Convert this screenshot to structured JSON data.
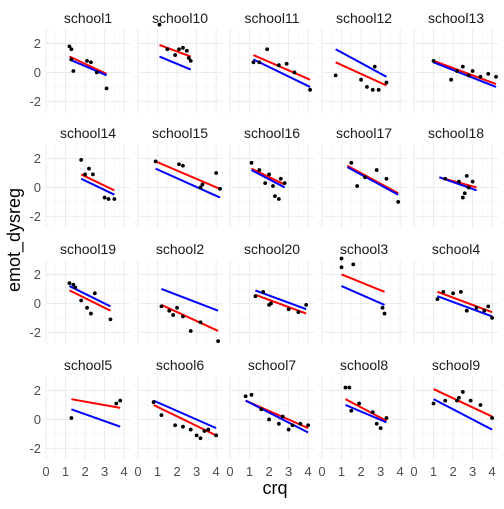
{
  "chart_data": {
    "type": "scatter",
    "layout": "facet_wrap",
    "ncol": 5,
    "xlabel": "crq",
    "ylabel": "emot_dysreg",
    "xlim": [
      0,
      4.3
    ],
    "ylim": [
      -2.8,
      3.0
    ],
    "xticks": [
      0,
      1,
      2,
      3,
      4
    ],
    "yticks": [
      -2,
      0,
      2
    ],
    "grid": true,
    "legend": "none",
    "colors": {
      "points": "#000000",
      "red_line": "#ff0000",
      "blue_line": "#0000ff",
      "grid": "#ebebeb",
      "strip_text": "#1a1a1a",
      "axis_text": "#4d4d4d"
    },
    "panels": [
      {
        "label": "school1",
        "points": [
          [
            1.2,
            1.8
          ],
          [
            1.3,
            1.6
          ],
          [
            1.3,
            0.9
          ],
          [
            1.4,
            0.1
          ],
          [
            2.1,
            0.8
          ],
          [
            2.3,
            0.7
          ],
          [
            2.6,
            0.0
          ],
          [
            3.1,
            -1.1
          ]
        ],
        "red": [
          [
            1.2,
            1.1
          ],
          [
            3.1,
            -0.1
          ]
        ],
        "blue": [
          [
            1.2,
            0.9
          ],
          [
            3.1,
            -0.2
          ]
        ]
      },
      {
        "label": "school10",
        "points": [
          [
            1.1,
            3.3
          ],
          [
            1.5,
            1.6
          ],
          [
            1.9,
            1.2
          ],
          [
            2.1,
            1.6
          ],
          [
            2.3,
            1.7
          ],
          [
            2.5,
            1.5
          ],
          [
            2.6,
            1.0
          ],
          [
            2.7,
            0.8
          ]
        ],
        "red": [
          [
            1.1,
            1.9
          ],
          [
            2.7,
            1.1
          ]
        ],
        "blue": [
          [
            1.1,
            1.1
          ],
          [
            2.7,
            0.2
          ]
        ]
      },
      {
        "label": "school11",
        "points": [
          [
            1.2,
            0.7
          ],
          [
            1.5,
            0.7
          ],
          [
            1.9,
            1.6
          ],
          [
            2.5,
            0.5
          ],
          [
            2.9,
            0.6
          ],
          [
            3.3,
            0.0
          ],
          [
            4.1,
            -1.2
          ]
        ],
        "red": [
          [
            1.2,
            1.2
          ],
          [
            4.1,
            -0.5
          ]
        ],
        "blue": [
          [
            1.2,
            0.9
          ],
          [
            4.1,
            -1.0
          ]
        ]
      },
      {
        "label": "school12",
        "points": [
          [
            0.7,
            -0.2
          ],
          [
            2.0,
            -0.5
          ],
          [
            2.3,
            -1.0
          ],
          [
            2.6,
            -1.2
          ],
          [
            2.7,
            0.4
          ],
          [
            2.9,
            -1.2
          ],
          [
            3.3,
            -0.7
          ]
        ],
        "red": [
          [
            0.7,
            0.7
          ],
          [
            3.3,
            -0.9
          ]
        ],
        "blue": [
          [
            0.7,
            1.6
          ],
          [
            3.3,
            -0.3
          ]
        ]
      },
      {
        "label": "school13",
        "points": [
          [
            1.0,
            0.8
          ],
          [
            1.9,
            -0.5
          ],
          [
            2.2,
            0.1
          ],
          [
            2.5,
            0.4
          ],
          [
            2.8,
            -0.2
          ],
          [
            3.0,
            0.1
          ],
          [
            3.4,
            -0.3
          ],
          [
            3.8,
            -0.1
          ],
          [
            4.2,
            -0.3
          ]
        ],
        "red": [
          [
            1.0,
            0.8
          ],
          [
            4.2,
            -0.8
          ]
        ],
        "blue": [
          [
            1.0,
            0.7
          ],
          [
            4.2,
            -1.0
          ]
        ]
      },
      {
        "label": "school14",
        "points": [
          [
            1.8,
            1.9
          ],
          [
            2.0,
            0.9
          ],
          [
            2.2,
            1.3
          ],
          [
            2.4,
            0.9
          ],
          [
            3.0,
            -0.7
          ],
          [
            3.2,
            -0.8
          ],
          [
            3.5,
            -0.8
          ]
        ],
        "red": [
          [
            1.8,
            0.9
          ],
          [
            3.5,
            -0.2
          ]
        ],
        "blue": [
          [
            1.8,
            0.6
          ],
          [
            3.5,
            -0.5
          ]
        ]
      },
      {
        "label": "school15",
        "points": [
          [
            0.9,
            1.8
          ],
          [
            2.1,
            1.6
          ],
          [
            2.3,
            1.5
          ],
          [
            3.2,
            0.0
          ],
          [
            3.3,
            0.2
          ],
          [
            4.0,
            1.0
          ],
          [
            4.2,
            -0.1
          ]
        ],
        "red": [
          [
            0.9,
            1.8
          ],
          [
            4.2,
            -0.1
          ]
        ],
        "blue": [
          [
            0.9,
            1.3
          ],
          [
            4.2,
            -0.7
          ]
        ]
      },
      {
        "label": "school16",
        "points": [
          [
            1.1,
            1.7
          ],
          [
            1.5,
            1.2
          ],
          [
            1.8,
            0.3
          ],
          [
            2.0,
            0.9
          ],
          [
            2.2,
            0.1
          ],
          [
            2.3,
            -0.6
          ],
          [
            2.5,
            -0.8
          ],
          [
            2.6,
            0.6
          ],
          [
            2.8,
            0.3
          ]
        ],
        "red": [
          [
            1.1,
            1.3
          ],
          [
            2.8,
            0.2
          ]
        ],
        "blue": [
          [
            1.1,
            1.2
          ],
          [
            2.8,
            0.0
          ]
        ]
      },
      {
        "label": "school17",
        "points": [
          [
            1.5,
            1.7
          ],
          [
            1.8,
            0.1
          ],
          [
            2.2,
            0.7
          ],
          [
            2.8,
            1.2
          ],
          [
            3.3,
            0.6
          ],
          [
            3.9,
            -1.0
          ]
        ],
        "red": [
          [
            1.3,
            1.5
          ],
          [
            3.9,
            -0.4
          ]
        ],
        "blue": [
          [
            1.3,
            1.4
          ],
          [
            3.9,
            -0.5
          ]
        ]
      },
      {
        "label": "school18",
        "points": [
          [
            1.6,
            0.6
          ],
          [
            2.3,
            0.4
          ],
          [
            2.5,
            -0.7
          ],
          [
            2.6,
            -0.4
          ],
          [
            2.7,
            0.8
          ],
          [
            2.8,
            0.0
          ],
          [
            3.0,
            0.4
          ]
        ],
        "red": [
          [
            1.3,
            0.7
          ],
          [
            3.2,
            0.0
          ]
        ],
        "blue": [
          [
            1.3,
            0.7
          ],
          [
            3.2,
            -0.2
          ]
        ]
      },
      {
        "label": "school19",
        "points": [
          [
            1.2,
            1.4
          ],
          [
            1.4,
            1.3
          ],
          [
            1.5,
            1.1
          ],
          [
            1.8,
            0.2
          ],
          [
            2.1,
            -0.3
          ],
          [
            2.3,
            -0.7
          ],
          [
            2.5,
            0.7
          ],
          [
            3.3,
            -1.1
          ]
        ],
        "red": [
          [
            1.2,
            0.9
          ],
          [
            3.3,
            -0.5
          ]
        ],
        "blue": [
          [
            1.2,
            1.2
          ],
          [
            3.3,
            -0.2
          ]
        ]
      },
      {
        "label": "school2",
        "points": [
          [
            1.2,
            -0.2
          ],
          [
            1.6,
            -0.5
          ],
          [
            1.8,
            -0.8
          ],
          [
            2.0,
            -0.3
          ],
          [
            2.3,
            -0.9
          ],
          [
            2.7,
            -1.9
          ],
          [
            3.2,
            -1.3
          ],
          [
            4.1,
            -2.6
          ]
        ],
        "red": [
          [
            1.2,
            -0.1
          ],
          [
            4.1,
            -1.9
          ]
        ],
        "blue": [
          [
            1.2,
            1.0
          ],
          [
            4.1,
            -0.5
          ]
        ]
      },
      {
        "label": "school20",
        "points": [
          [
            1.3,
            0.5
          ],
          [
            1.7,
            0.8
          ],
          [
            2.0,
            -0.1
          ],
          [
            2.1,
            0.0
          ],
          [
            3.0,
            -0.4
          ],
          [
            3.5,
            -0.6
          ],
          [
            3.9,
            -0.1
          ]
        ],
        "red": [
          [
            1.3,
            0.6
          ],
          [
            3.9,
            -0.7
          ]
        ],
        "blue": [
          [
            1.3,
            0.9
          ],
          [
            3.9,
            -0.4
          ]
        ]
      },
      {
        "label": "school3",
        "points": [
          [
            1.0,
            3.1
          ],
          [
            1.0,
            2.5
          ],
          [
            1.6,
            2.7
          ],
          [
            3.1,
            -0.3
          ],
          [
            3.2,
            -0.7
          ]
        ],
        "red": [
          [
            1.0,
            2.0
          ],
          [
            3.2,
            0.8
          ]
        ],
        "blue": [
          [
            1.0,
            1.2
          ],
          [
            3.2,
            -0.1
          ]
        ]
      },
      {
        "label": "school4",
        "points": [
          [
            1.2,
            0.3
          ],
          [
            1.5,
            0.8
          ],
          [
            2.0,
            0.7
          ],
          [
            2.4,
            0.8
          ],
          [
            2.7,
            -0.5
          ],
          [
            3.2,
            -0.3
          ],
          [
            3.6,
            -0.5
          ],
          [
            3.8,
            -0.2
          ],
          [
            4.0,
            -1.0
          ]
        ],
        "red": [
          [
            1.2,
            0.8
          ],
          [
            4.0,
            -0.6
          ]
        ],
        "blue": [
          [
            1.2,
            0.5
          ],
          [
            4.0,
            -0.9
          ]
        ]
      },
      {
        "label": "school5",
        "points": [
          [
            1.3,
            0.1
          ],
          [
            3.6,
            1.1
          ],
          [
            3.8,
            1.3
          ]
        ],
        "red": [
          [
            1.3,
            1.4
          ],
          [
            3.8,
            0.8
          ]
        ],
        "blue": [
          [
            1.3,
            0.7
          ],
          [
            3.8,
            -0.5
          ]
        ]
      },
      {
        "label": "school6",
        "points": [
          [
            0.8,
            1.2
          ],
          [
            1.2,
            0.3
          ],
          [
            1.9,
            -0.4
          ],
          [
            2.3,
            -0.5
          ],
          [
            2.7,
            -0.7
          ],
          [
            3.0,
            -1.1
          ],
          [
            3.2,
            -1.3
          ],
          [
            3.4,
            -0.8
          ],
          [
            3.6,
            -0.7
          ],
          [
            4.0,
            -1.1
          ]
        ],
        "red": [
          [
            0.8,
            1.0
          ],
          [
            4.0,
            -1.1
          ]
        ],
        "blue": [
          [
            0.8,
            1.3
          ],
          [
            4.0,
            -0.6
          ]
        ]
      },
      {
        "label": "school7",
        "points": [
          [
            0.8,
            1.6
          ],
          [
            1.1,
            1.7
          ],
          [
            1.6,
            0.7
          ],
          [
            2.0,
            0.0
          ],
          [
            2.5,
            -0.3
          ],
          [
            2.7,
            0.2
          ],
          [
            3.0,
            -0.7
          ],
          [
            3.2,
            -0.4
          ],
          [
            3.6,
            -0.3
          ],
          [
            4.0,
            -0.4
          ]
        ],
        "red": [
          [
            0.8,
            1.3
          ],
          [
            4.0,
            -0.6
          ]
        ],
        "blue": [
          [
            0.8,
            1.3
          ],
          [
            4.0,
            -0.9
          ]
        ]
      },
      {
        "label": "school8",
        "points": [
          [
            1.2,
            2.2
          ],
          [
            1.4,
            2.2
          ],
          [
            1.5,
            0.6
          ],
          [
            1.9,
            1.1
          ],
          [
            2.6,
            0.5
          ],
          [
            2.8,
            -0.3
          ],
          [
            3.0,
            -0.6
          ],
          [
            3.3,
            0.1
          ]
        ],
        "red": [
          [
            1.2,
            1.4
          ],
          [
            3.3,
            -0.1
          ]
        ],
        "blue": [
          [
            1.2,
            1.0
          ],
          [
            3.3,
            -0.2
          ]
        ]
      },
      {
        "label": "school9",
        "points": [
          [
            1.0,
            1.1
          ],
          [
            1.6,
            1.3
          ],
          [
            2.2,
            1.3
          ],
          [
            2.3,
            1.5
          ],
          [
            2.5,
            1.9
          ],
          [
            2.9,
            1.3
          ],
          [
            3.4,
            1.0
          ],
          [
            4.0,
            0.1
          ]
        ],
        "red": [
          [
            1.0,
            2.1
          ],
          [
            4.0,
            0.2
          ]
        ],
        "blue": [
          [
            1.0,
            1.4
          ],
          [
            4.0,
            -0.7
          ]
        ]
      }
    ]
  }
}
